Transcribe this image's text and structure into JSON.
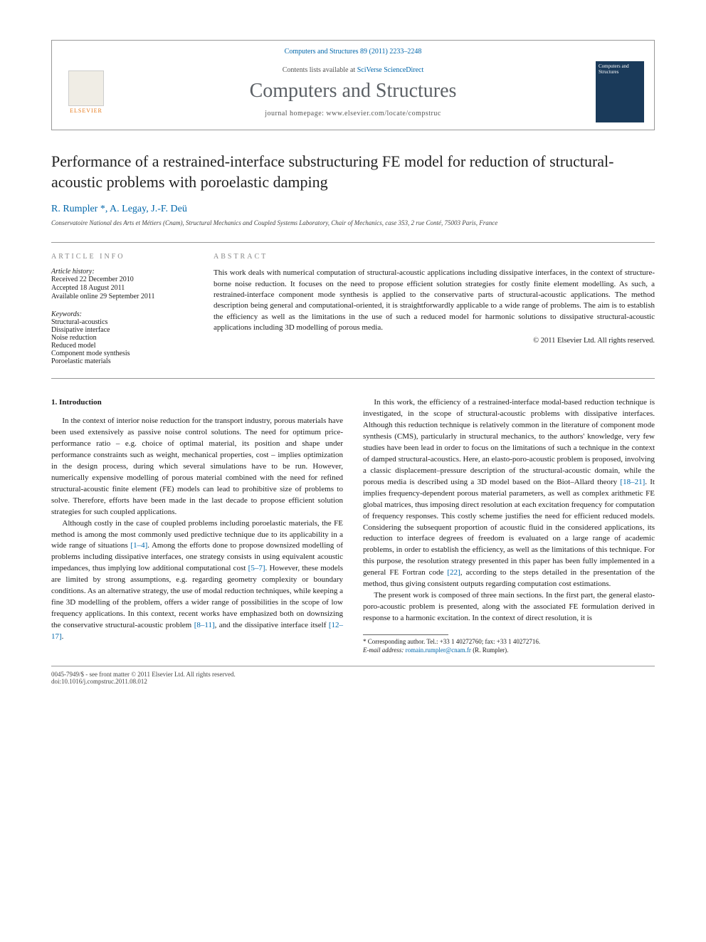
{
  "header": {
    "journal_ref": "Computers and Structures 89 (2011) 2233–2248",
    "contents_prefix": "Contents lists available at ",
    "contents_link": "SciVerse ScienceDirect",
    "journal_name": "Computers and Structures",
    "homepage_prefix": "journal homepage: ",
    "homepage_url": "www.elsevier.com/locate/compstruc",
    "publisher_word": "ELSEVIER",
    "cover_title": "Computers and Structures"
  },
  "title": "Performance of a restrained-interface substructuring FE model for reduction of structural-acoustic problems with poroelastic damping",
  "authors_html": "R. Rumpler *, A. Legay, J.-F. Deü",
  "affiliation": "Conservatoire National des Arts et Métiers (Cnam), Structural Mechanics and Coupled Systems Laboratory, Chair of Mechanics, case 353, 2 rue Conté, 75003 Paris, France",
  "articleinfo": {
    "head": "ARTICLE INFO",
    "history_label": "Article history:",
    "received": "Received 22 December 2010",
    "accepted": "Accepted 18 August 2011",
    "online": "Available online 29 September 2011",
    "keywords_label": "Keywords:",
    "keywords": [
      "Structural-acoustics",
      "Dissipative interface",
      "Noise reduction",
      "Reduced model",
      "Component mode synthesis",
      "Poroelastic materials"
    ]
  },
  "abstract": {
    "head": "ABSTRACT",
    "text": "This work deals with numerical computation of structural-acoustic applications including dissipative interfaces, in the context of structure-borne noise reduction. It focuses on the need to propose efficient solution strategies for costly finite element modelling. As such, a restrained-interface component mode synthesis is applied to the conservative parts of structural-acoustic applications. The method description being general and computational-oriented, it is straightforwardly applicable to a wide range of problems. The aim is to establish the efficiency as well as the limitations in the use of such a reduced model for harmonic solutions to dissipative structural-acoustic applications including 3D modelling of porous media.",
    "copyright": "© 2011 Elsevier Ltd. All rights reserved."
  },
  "section1": {
    "head": "1. Introduction",
    "p1": "In the context of interior noise reduction for the transport industry, porous materials have been used extensively as passive noise control solutions. The need for optimum price-performance ratio – e.g. choice of optimal material, its position and shape under performance constraints such as weight, mechanical properties, cost – implies optimization in the design process, during which several simulations have to be run. However, numerically expensive modelling of porous material combined with the need for refined structural-acoustic finite element (FE) models can lead to prohibitive size of problems to solve. Therefore, efforts have been made in the last decade to propose efficient solution strategies for such coupled applications.",
    "p2a": "Although costly in the case of coupled problems including poroelastic materials, the FE method is among the most commonly used predictive technique due to its applicability in a wide range of situations ",
    "p2_ref1": "[1–4]",
    "p2b": ". Among the efforts done to propose downsized modelling of problems including dissipative interfaces, one strategy consists in using equivalent acoustic impedances, thus implying low additional computational cost ",
    "p2_ref2": "[5–7]",
    "p2c": ". However, these models are limited by strong assumptions, e.g. regarding geometry complexity or boundary conditions. As an alternative strategy, the use of modal reduction techniques, while keeping a fine 3D modelling of the problem, offers a wider range of possibilities in the scope of low frequency applications. In this context, recent works have emphasized both on downsizing the conservative structural-acoustic problem ",
    "p2_ref3": "[8–11]",
    "p2d": ", and the dissipative interface itself ",
    "p2_ref4": "[12–17]",
    "p2e": ".",
    "p3a": "In this work, the efficiency of a restrained-interface modal-based reduction technique is investigated, in the scope of structural-acoustic problems with dissipative interfaces. Although this reduction technique is relatively common in the literature of component mode synthesis (CMS), particularly in structural mechanics, to the authors' knowledge, very few studies have been lead in order to focus on the limitations of such a technique in the context of damped structural-acoustics. Here, an elasto-poro-acoustic problem is proposed, involving a classic displacement–pressure description of the structural-acoustic domain, while the porous media is described using a 3D model based on the Biot–Allard theory ",
    "p3_ref1": "[18–21]",
    "p3b": ". It implies frequency-dependent porous material parameters, as well as complex arithmetic FE global matrices, thus imposing direct resolution at each excitation frequency for computation of frequency responses. This costly scheme justifies the need for efficient reduced models. Considering the subsequent proportion of acoustic fluid in the considered applications, its reduction to interface degrees of freedom is evaluated on a large range of academic problems, in order to establish the efficiency, as well as the limitations of this technique. For this purpose, the resolution strategy presented in this paper has been fully implemented in a general FE Fortran code ",
    "p3_ref2": "[22]",
    "p3c": ", according to the steps detailed in the presentation of the method, thus giving consistent outputs regarding computation cost estimations.",
    "p4": "The present work is composed of three main sections. In the first part, the general elasto-poro-acoustic problem is presented, along with the associated FE formulation derived in response to a harmonic excitation. In the context of direct resolution, it is"
  },
  "footnote": {
    "corr": "* Corresponding author. Tel.: +33 1 40272760; fax: +33 1 40272716.",
    "email_lbl": "E-mail address:",
    "email": "romain.rumpler@cnam.fr",
    "email_who": "(R. Rumpler)."
  },
  "footer": {
    "issn": "0045-7949/$ - see front matter © 2011 Elsevier Ltd. All rights reserved.",
    "doi": "doi:10.1016/j.compstruc.2011.08.012"
  },
  "colors": {
    "link": "#0066aa",
    "rule": "#999999",
    "muted": "#888888",
    "journal_gray": "#5c6166",
    "elsevier_orange": "#e67817",
    "cover_bg": "#1a3a5a"
  },
  "fonts": {
    "body_pt": 11,
    "title_pt": 22,
    "journal_pt": 28,
    "meta_pt": 10,
    "footnote_pt": 9
  }
}
